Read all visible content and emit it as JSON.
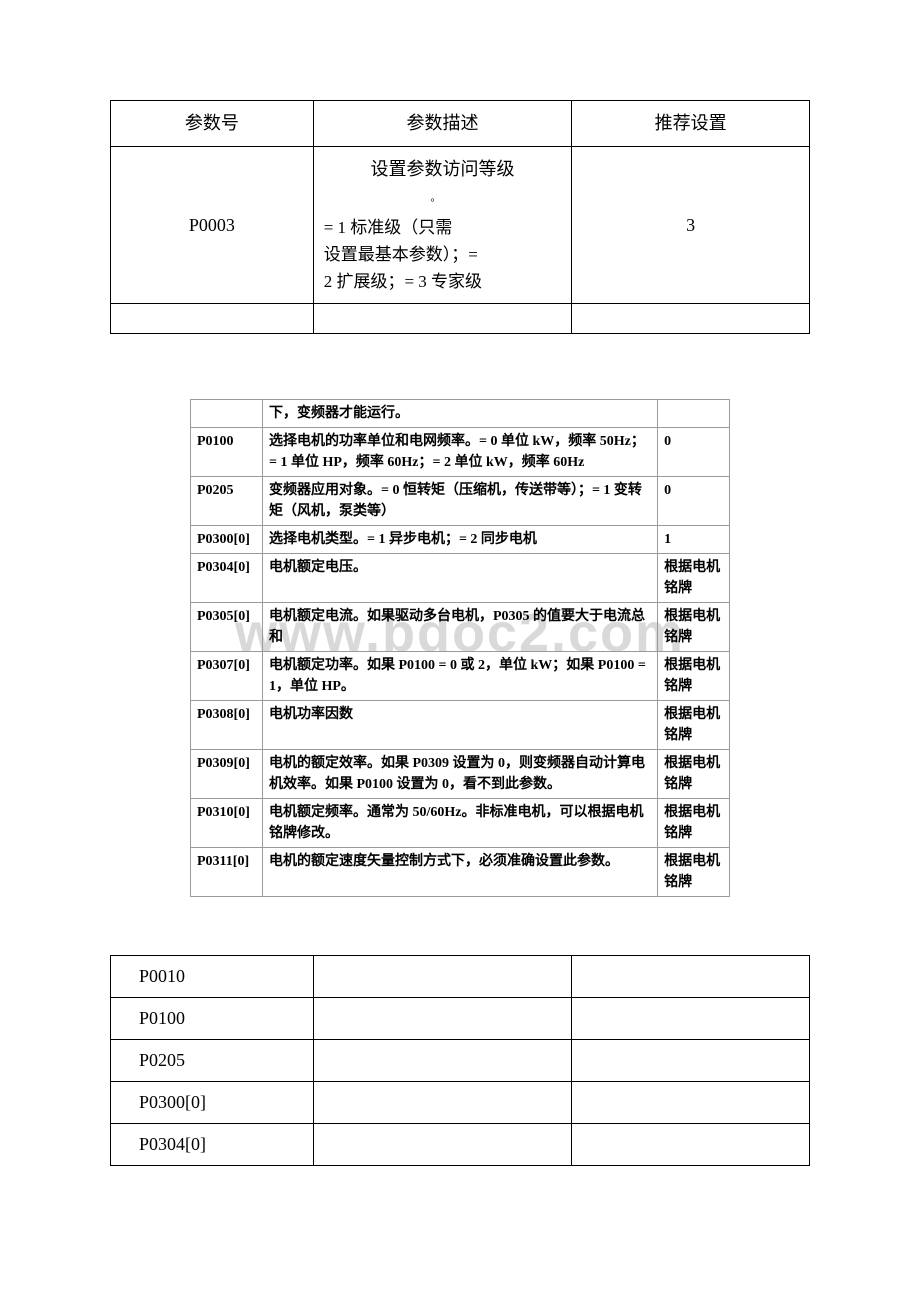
{
  "colors": {
    "page_bg": "#ffffff",
    "border_dark": "#000000",
    "border_gray": "#9a9a9a",
    "watermark": "#d9d9d9",
    "text": "#000000"
  },
  "table1": {
    "headers": {
      "param": "参数号",
      "desc": "参数描述",
      "rec": "推荐设置"
    },
    "row": {
      "param": "P0003",
      "desc_title": "设置参数访问等级",
      "circ": "。",
      "desc_body1": "    = 1 标准级（只需",
      "desc_body2": "设置最基本参数）；=",
      "desc_body3": "2 扩展级；= 3 专家级",
      "rec": "3"
    }
  },
  "watermark": "www.bdoc2.com",
  "table2": {
    "rows": [
      {
        "param": "",
        "desc": "下，变频器才能运行。",
        "val": ""
      },
      {
        "param": "P0100",
        "desc": "选择电机的功率单位和电网频率。= 0 单位 kW，频率 50Hz；= 1 单位 HP，频率 60Hz；= 2 单位 kW，频率 60Hz",
        "val": "0"
      },
      {
        "param": "P0205",
        "desc": "变频器应用对象。= 0 恒转矩（压缩机，传送带等）；= 1 变转矩（风机，泵类等）",
        "val": "0"
      },
      {
        "param": "P0300[0]",
        "desc": "选择电机类型。= 1 异步电机；= 2 同步电机",
        "val": "1"
      },
      {
        "param": "P0304[0]",
        "desc": "电机额定电压。",
        "val": "根据电机铭牌"
      },
      {
        "param": "P0305[0]",
        "desc": "电机额定电流。如果驱动多台电机，P0305 的值要大于电流总和",
        "val": "根据电机铭牌"
      },
      {
        "param": "P0307[0]",
        "desc": "电机额定功率。如果 P0100 = 0 或 2，单位 kW；如果 P0100 = 1，单位 HP。",
        "val": "根据电机铭牌"
      },
      {
        "param": "P0308[0]",
        "desc": "电机功率因数",
        "val": "根据电机铭牌"
      },
      {
        "param": "P0309[0]",
        "desc": "电机的额定效率。如果 P0309 设置为 0，则变频器自动计算电机效率。如果 P0100 设置为 0，看不到此参数。",
        "val": "根据电机铭牌"
      },
      {
        "param": "P0310[0]",
        "desc": "电机额定频率。通常为 50/60Hz。非标准电机，可以根据电机铭牌修改。",
        "val": "根据电机铭牌"
      },
      {
        "param": "P0311[0]",
        "desc": "电机的额定速度矢量控制方式下，必须准确设置此参数。",
        "val": "根据电机铭牌"
      }
    ]
  },
  "table3": {
    "rows": [
      {
        "p": "P0010"
      },
      {
        "p": "P0100"
      },
      {
        "p": "P0205"
      },
      {
        "p": "P0300[0]"
      },
      {
        "p": "P0304[0]"
      }
    ]
  }
}
